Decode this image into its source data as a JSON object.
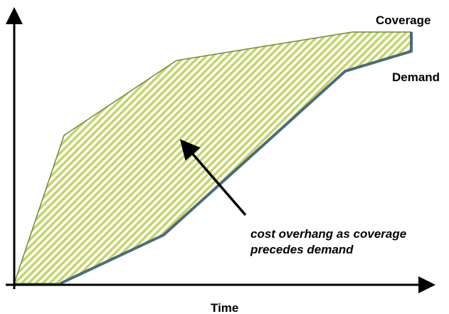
{
  "labels": {
    "coverage": "Coverage",
    "demand": "Demand",
    "x_axis": "Time"
  },
  "annotation": [
    "cost overhang as coverage",
    "precedes demand"
  ]
}
